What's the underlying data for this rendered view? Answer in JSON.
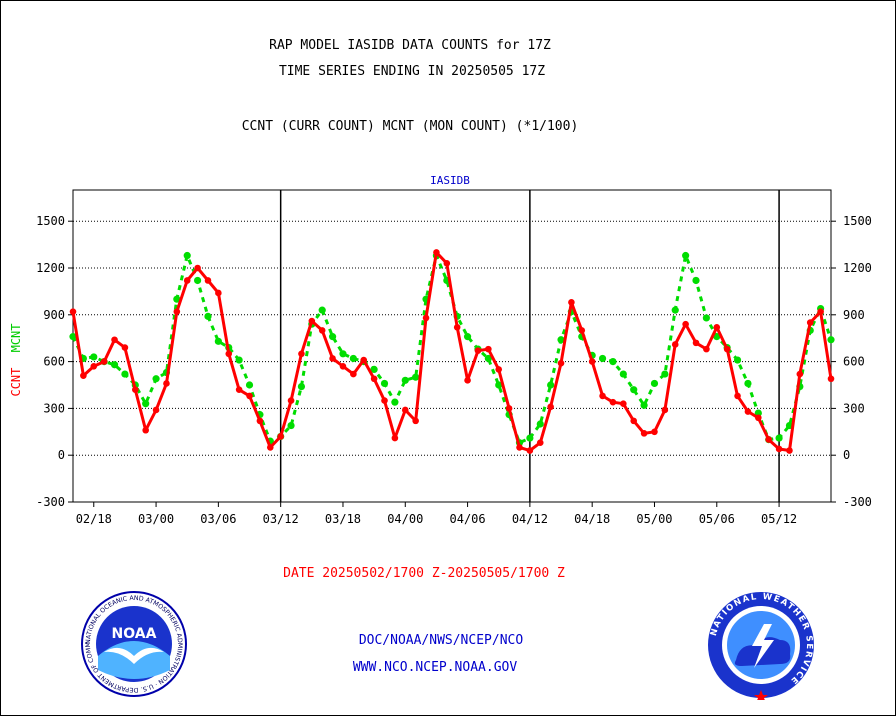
{
  "header": {
    "title_line1": "RAP MODEL IASIDB DATA COUNTS for 17Z",
    "title_line2": "TIME SERIES ENDING IN 20250505 17Z",
    "subtitle": "CCNT (CURR COUNT) MCNT (MON COUNT) (*1/100)"
  },
  "footer": {
    "date_range": "DATE 20250502/1700 Z-20250505/1700 Z",
    "link1": "DOC/NOAA/NWS/NCEP/NCO",
    "link2": "WWW.NCO.NCEP.NOAA.GOV"
  },
  "logos": {
    "noaa_text": "NOAA",
    "noaa_ring": "NATIONAL OCEANIC AND ATMOSPHERIC ADMINISTRATION · U.S. DEPARTMENT OF COMMERCE ·",
    "nws_ring": "NATIONAL WEATHER SERVICE"
  },
  "colors": {
    "ccnt": "#ff0000",
    "mcnt": "#00dd00",
    "panel_title": "#0000cc",
    "footer_link": "#0000cc",
    "date_text": "#ff0000"
  },
  "chart_data": {
    "type": "line",
    "title": "IASIDB",
    "ylabel_left": [
      "CCNT",
      "MCNT"
    ],
    "ylim": [
      -300,
      1700
    ],
    "yticks": [
      -300,
      0,
      300,
      600,
      900,
      1200,
      1500
    ],
    "xticks": [
      "02/18",
      "03/00",
      "03/06",
      "03/12",
      "03/18",
      "04/00",
      "04/06",
      "04/12",
      "04/18",
      "05/00",
      "05/06",
      "05/12"
    ],
    "xtick_index": [
      2,
      8,
      14,
      20,
      26,
      32,
      38,
      44,
      50,
      56,
      62,
      68
    ],
    "day_boundaries_index": [
      20,
      44,
      68
    ],
    "grid": true,
    "series": [
      {
        "name": "CCNT",
        "values": [
          920,
          510,
          570,
          600,
          740,
          690,
          420,
          160,
          290,
          460,
          920,
          1120,
          1200,
          1120,
          1040,
          650,
          420,
          380,
          220,
          50,
          120,
          350,
          650,
          860,
          800,
          620,
          570,
          520,
          610,
          490,
          350,
          110,
          290,
          220,
          880,
          1300,
          1230,
          820,
          480,
          670,
          680,
          550,
          300,
          50,
          30,
          80,
          310,
          590,
          980,
          800,
          600,
          380,
          340,
          330,
          220,
          140,
          150,
          290,
          710,
          840,
          720,
          680,
          820,
          680,
          380,
          280,
          240,
          100,
          40,
          30,
          520,
          850,
          920,
          490
        ]
      },
      {
        "name": "MCNT",
        "values": [
          760,
          620,
          630,
          600,
          580,
          520,
          450,
          330,
          490,
          530,
          1000,
          1280,
          1120,
          890,
          730,
          690,
          610,
          450,
          260,
          90,
          120,
          190,
          440,
          840,
          930,
          760,
          650,
          620,
          600,
          550,
          460,
          340,
          480,
          500,
          1000,
          1280,
          1120,
          890,
          760,
          680,
          620,
          450,
          260,
          80,
          110,
          200,
          450,
          740,
          920,
          760,
          640,
          620,
          600,
          520,
          420,
          320,
          460,
          520,
          930,
          1280,
          1120,
          880,
          760,
          690,
          610,
          460,
          270,
          100,
          110,
          190,
          440,
          800,
          940,
          740
        ]
      }
    ]
  }
}
